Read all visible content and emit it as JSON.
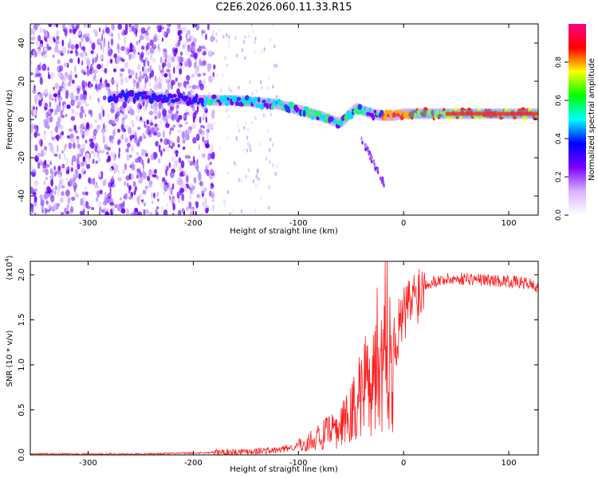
{
  "figure_title": "C2E6.2026.060.11.33.R15",
  "chart_data": [
    {
      "type": "heatmap",
      "title": "C2E6.2026.060.11.33.R15",
      "xlabel": "Height of straight line (km)",
      "ylabel": "Frequency (Hz)",
      "xlim": [
        -355,
        128
      ],
      "ylim": [
        -50,
        50
      ],
      "x_ticks": [
        -300,
        -200,
        -100,
        0,
        100
      ],
      "x_tick_labels": [
        "-300",
        "-200",
        "-100",
        "0",
        "100"
      ],
      "y_ticks": [
        -40,
        -20,
        0,
        20,
        40
      ],
      "y_tick_labels": [
        "-40",
        "-20",
        "0",
        "20",
        "40"
      ],
      "colorbar": {
        "label": "Normalized spectral amplitude",
        "range": [
          0,
          1
        ],
        "ticks": [
          0.0,
          0.2,
          0.4,
          0.6,
          0.8
        ],
        "tick_labels": [
          "0.0",
          "0.2",
          "0.4",
          "0.6",
          "0.8"
        ],
        "colors": [
          "#ffffff",
          "#d9b3ff",
          "#7a00ff",
          "#0000ff",
          "#00ffff",
          "#00ff00",
          "#ffff00",
          "#ff0000",
          "#ff0080"
        ]
      },
      "ridge": {
        "x": [
          -280,
          -250,
          -220,
          -190,
          -160,
          -140,
          -120,
          -100,
          -80,
          -60,
          -45,
          -30,
          -20,
          -10,
          0,
          20,
          60,
          100,
          128
        ],
        "y": [
          12,
          12,
          11,
          10,
          10,
          9,
          8,
          5,
          2,
          -2,
          6,
          3,
          2,
          2,
          3,
          3,
          3,
          3,
          3
        ]
      },
      "noise_region_x": [
        -355,
        -180
      ]
    },
    {
      "type": "line",
      "title": "",
      "xlabel": "Height of straight line (km)",
      "ylabel": "SNR (10 * v/v)",
      "multiplier_label": "(x10",
      "multiplier_exp": "4",
      "multiplier_close": ")",
      "xlim": [
        -355,
        128
      ],
      "ylim": [
        0,
        2.15
      ],
      "x_ticks": [
        -300,
        -200,
        -100,
        0,
        100
      ],
      "x_tick_labels": [
        "-300",
        "-200",
        "-100",
        "0",
        "100"
      ],
      "y_ticks": [
        0.0,
        0.5,
        1.0,
        1.5,
        2.0
      ],
      "y_tick_labels": [
        "0.0",
        "0.5",
        "1.0",
        "1.5",
        "2.0"
      ],
      "series": [
        {
          "name": "SNR",
          "color": "#ff2020",
          "x": [
            -355,
            -300,
            -250,
            -200,
            -170,
            -150,
            -120,
            -100,
            -80,
            -60,
            -50,
            -40,
            -30,
            -20,
            -15,
            -10,
            0,
            10,
            20,
            30,
            40,
            60,
            80,
            100,
            120,
            128
          ],
          "y": [
            0.01,
            0.01,
            0.01,
            0.02,
            0.03,
            0.04,
            0.05,
            0.1,
            0.2,
            0.3,
            0.45,
            0.7,
            1.0,
            1.1,
            1.3,
            1.2,
            1.55,
            1.75,
            1.9,
            1.93,
            1.95,
            1.96,
            1.94,
            1.93,
            1.9,
            1.85
          ]
        }
      ]
    }
  ]
}
